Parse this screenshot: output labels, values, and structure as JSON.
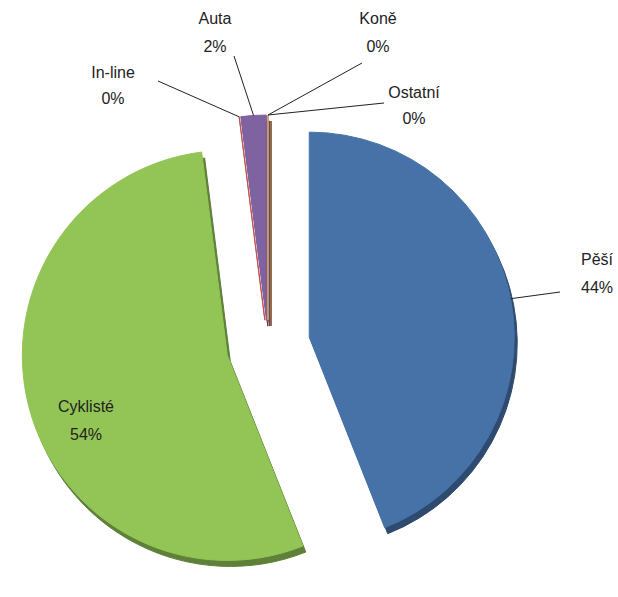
{
  "chart_data": {
    "type": "pie",
    "categories": [
      "Pěší",
      "Cyklisté",
      "In-line",
      "Auta",
      "Koně",
      "Ostatní"
    ],
    "values": [
      44,
      54,
      0,
      2,
      0,
      0
    ],
    "value_labels": [
      "44%",
      "54%",
      "0%",
      "2%",
      "0%",
      "0%"
    ],
    "colors": [
      "#4672a8",
      "#92c556",
      "#c0504d",
      "#7f62a0",
      "#4bacc6",
      "#f79646"
    ],
    "data_labels": true
  }
}
